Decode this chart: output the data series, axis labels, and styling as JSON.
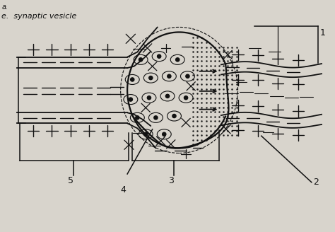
{
  "bg_color": "#d8d4cc",
  "title_text": "e.  synaptic vesicle",
  "label_1": "1",
  "label_2": "2",
  "label_3": "3",
  "label_4": "4",
  "label_5": "5",
  "line_color": "#111111"
}
